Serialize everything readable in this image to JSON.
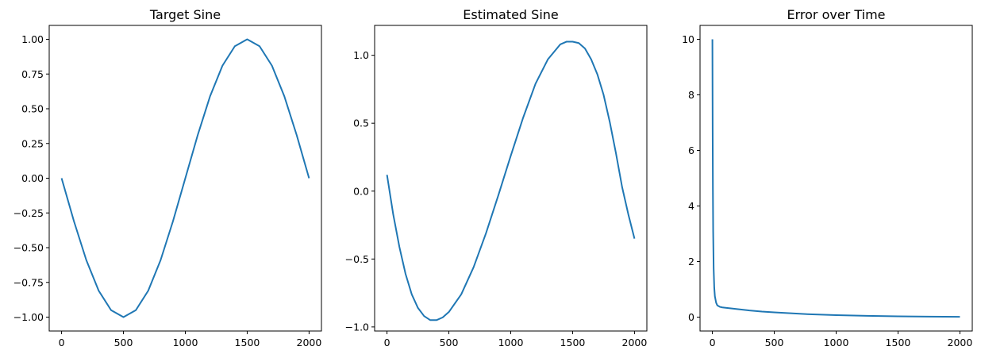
{
  "chart_data": [
    {
      "type": "line",
      "title": "Target Sine",
      "xlabel": "",
      "ylabel": "",
      "xlim": [
        -100,
        2100
      ],
      "ylim": [
        -1.1,
        1.1
      ],
      "grid": false,
      "legend": "none",
      "xticks": [
        0,
        500,
        1000,
        1500,
        2000
      ],
      "xtick_labels": [
        "0",
        "500",
        "1000",
        "1500",
        "2000"
      ],
      "yticks": [
        1.0,
        0.75,
        0.5,
        0.25,
        0.0,
        -0.25,
        -0.5,
        -0.75,
        -1.0
      ],
      "ytick_labels": [
        "1.00",
        "0.75",
        "0.50",
        "0.25",
        "0.00",
        "−0.25",
        "−0.50",
        "−0.75",
        "−1.00"
      ],
      "series": [
        {
          "color": "#1f77b4",
          "x": [
            0,
            100,
            200,
            300,
            400,
            500,
            600,
            700,
            800,
            900,
            1000,
            1100,
            1200,
            1300,
            1400,
            1500,
            1600,
            1700,
            1800,
            1900,
            2000
          ],
          "y": [
            0.0,
            -0.31,
            -0.59,
            -0.81,
            -0.95,
            -1.0,
            -0.95,
            -0.81,
            -0.59,
            -0.31,
            0.0,
            0.31,
            0.59,
            0.81,
            0.95,
            1.0,
            0.95,
            0.81,
            0.59,
            0.31,
            0.0
          ]
        }
      ]
    },
    {
      "type": "line",
      "title": "Estimated Sine",
      "xlabel": "",
      "ylabel": "",
      "xlim": [
        -100,
        2100
      ],
      "ylim": [
        -1.03,
        1.22
      ],
      "grid": false,
      "legend": "none",
      "xticks": [
        0,
        500,
        1000,
        1500,
        2000
      ],
      "xtick_labels": [
        "0",
        "500",
        "1000",
        "1500",
        "2000"
      ],
      "yticks": [
        1.0,
        0.5,
        0.0,
        -0.5,
        -1.0
      ],
      "ytick_labels": [
        "1.0",
        "0.5",
        "0.0",
        "−0.5",
        "−1.0"
      ],
      "series": [
        {
          "color": "#1f77b4",
          "x": [
            0,
            50,
            100,
            150,
            200,
            250,
            300,
            350,
            400,
            450,
            500,
            600,
            700,
            800,
            900,
            1000,
            1100,
            1200,
            1300,
            1400,
            1450,
            1500,
            1550,
            1600,
            1650,
            1700,
            1750,
            1800,
            1850,
            1900,
            1950,
            2000
          ],
          "y": [
            0.12,
            -0.17,
            -0.41,
            -0.61,
            -0.76,
            -0.86,
            -0.92,
            -0.95,
            -0.95,
            -0.93,
            -0.89,
            -0.76,
            -0.56,
            -0.31,
            -0.03,
            0.26,
            0.54,
            0.79,
            0.97,
            1.08,
            1.1,
            1.1,
            1.09,
            1.05,
            0.97,
            0.86,
            0.71,
            0.51,
            0.28,
            0.03,
            -0.17,
            -0.35
          ]
        }
      ]
    },
    {
      "type": "line",
      "title": "Error over Time",
      "xlabel": "",
      "ylabel": "",
      "xlim": [
        -100,
        2100
      ],
      "ylim": [
        -0.5,
        10.5
      ],
      "grid": false,
      "legend": "none",
      "xticks": [
        0,
        500,
        1000,
        1500,
        2000
      ],
      "xtick_labels": [
        "0",
        "500",
        "1000",
        "1500",
        "2000"
      ],
      "yticks": [
        10,
        8,
        6,
        4,
        2,
        0
      ],
      "ytick_labels": [
        "10",
        "8",
        "6",
        "4",
        "2",
        "0"
      ],
      "series": [
        {
          "color": "#1f77b4",
          "x": [
            0,
            2,
            4,
            6,
            10,
            15,
            20,
            30,
            40,
            60,
            80,
            100,
            200,
            300,
            400,
            500,
            750,
            1000,
            1250,
            1500,
            1750,
            2000
          ],
          "y": [
            10.0,
            6.8,
            4.6,
            3.1,
            1.75,
            1.05,
            0.75,
            0.52,
            0.42,
            0.37,
            0.35,
            0.34,
            0.29,
            0.24,
            0.2,
            0.17,
            0.11,
            0.07,
            0.045,
            0.03,
            0.018,
            0.01
          ]
        }
      ]
    }
  ]
}
